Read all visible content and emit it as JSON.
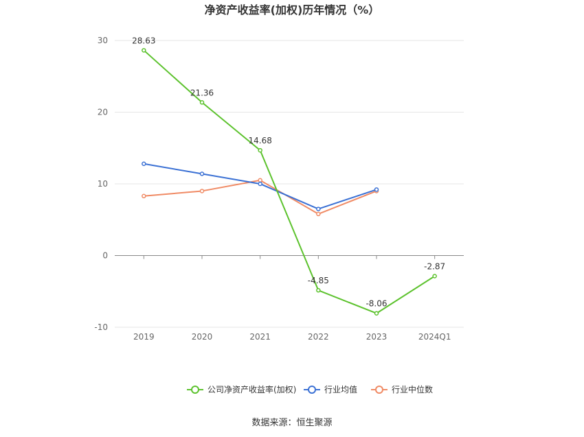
{
  "chart_data": {
    "type": "line",
    "title": "净资产收益率(加权)历年情况（%）",
    "categories": [
      "2019",
      "2020",
      "2021",
      "2022",
      "2023",
      "2024Q1"
    ],
    "ylim": [
      -10,
      30
    ],
    "yticks": [
      "30",
      "20",
      "10",
      "0",
      "-10"
    ],
    "grid": true,
    "legend_position": "bottom",
    "series": [
      {
        "name": "公司净资产收益率(加权)",
        "color": "#5cc22d",
        "values": [
          28.63,
          21.36,
          14.68,
          -4.85,
          -8.06,
          -2.87
        ],
        "labels": [
          "28.63",
          "21.36",
          "14.68",
          "-4.85",
          "-8.06",
          "-2.87"
        ]
      },
      {
        "name": "行业均值",
        "color": "#3a70d4",
        "values": [
          12.8,
          11.4,
          10.0,
          6.5,
          9.2,
          null
        ]
      },
      {
        "name": "行业中位数",
        "color": "#f08a64",
        "values": [
          8.3,
          9.0,
          10.5,
          5.8,
          9.0,
          null
        ]
      }
    ],
    "source": "数据来源：恒生聚源"
  }
}
